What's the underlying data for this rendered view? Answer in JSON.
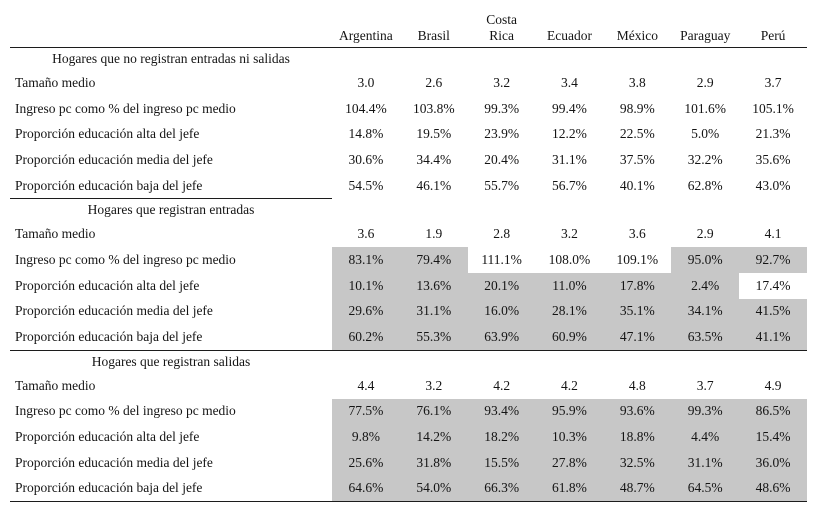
{
  "table": {
    "shade_color": "#c7c7c7",
    "columns": [
      "Argentina",
      "Brasil",
      "Costa\nRica",
      "Ecuador",
      "México",
      "Paraguay",
      "Perú"
    ],
    "sections": [
      {
        "title": "Hogares que no registran entradas ni salidas",
        "rows": [
          {
            "label": "Tamaño medio",
            "values": [
              "3.0",
              "2.6",
              "3.2",
              "3.4",
              "3.8",
              "2.9",
              "3.7"
            ],
            "shaded": []
          },
          {
            "label": "Ingreso pc como % del ingreso pc medio",
            "values": [
              "104.4%",
              "103.8%",
              "99.3%",
              "99.4%",
              "98.9%",
              "101.6%",
              "105.1%"
            ],
            "shaded": []
          },
          {
            "label": "Proporción educación alta del jefe",
            "values": [
              "14.8%",
              "19.5%",
              "23.9%",
              "12.2%",
              "22.5%",
              "5.0%",
              "21.3%"
            ],
            "shaded": []
          },
          {
            "label": "Proporción educación media del jefe",
            "values": [
              "30.6%",
              "34.4%",
              "20.4%",
              "31.1%",
              "37.5%",
              "32.2%",
              "35.6%"
            ],
            "shaded": []
          },
          {
            "label": "Proporción educación baja del jefe",
            "values": [
              "54.5%",
              "46.1%",
              "55.7%",
              "56.7%",
              "40.1%",
              "62.8%",
              "43.0%"
            ],
            "shaded": []
          }
        ]
      },
      {
        "title": "Hogares que registran entradas",
        "rows": [
          {
            "label": "Tamaño medio",
            "values": [
              "3.6",
              "1.9",
              "2.8",
              "3.2",
              "3.6",
              "2.9",
              "4.1"
            ],
            "shaded": []
          },
          {
            "label": "Ingreso pc como % del ingreso pc medio",
            "values": [
              "83.1%",
              "79.4%",
              "111.1%",
              "108.0%",
              "109.1%",
              "95.0%",
              "92.7%"
            ],
            "shaded": [
              0,
              1,
              5,
              6
            ]
          },
          {
            "label": "Proporción educación alta del jefe",
            "values": [
              "10.1%",
              "13.6%",
              "20.1%",
              "11.0%",
              "17.8%",
              "2.4%",
              "17.4%"
            ],
            "shaded": [
              0,
              1,
              2,
              3,
              4,
              5
            ]
          },
          {
            "label": "Proporción educación media del jefe",
            "values": [
              "29.6%",
              "31.1%",
              "16.0%",
              "28.1%",
              "35.1%",
              "34.1%",
              "41.5%"
            ],
            "shaded": [
              0,
              1,
              2,
              3,
              4,
              5,
              6
            ]
          },
          {
            "label": "Proporción educación baja del jefe",
            "values": [
              "60.2%",
              "55.3%",
              "63.9%",
              "60.9%",
              "47.1%",
              "63.5%",
              "41.1%"
            ],
            "shaded": [
              0,
              1,
              2,
              3,
              4,
              5,
              6
            ]
          }
        ]
      },
      {
        "title": "Hogares que registran salidas",
        "rows": [
          {
            "label": "Tamaño medio",
            "values": [
              "4.4",
              "3.2",
              "4.2",
              "4.2",
              "4.8",
              "3.7",
              "4.9"
            ],
            "shaded": []
          },
          {
            "label": "Ingreso pc como % del ingreso pc medio",
            "values": [
              "77.5%",
              "76.1%",
              "93.4%",
              "95.9%",
              "93.6%",
              "99.3%",
              "86.5%"
            ],
            "shaded": [
              0,
              1,
              2,
              3,
              4,
              5,
              6
            ]
          },
          {
            "label": "Proporción educación alta del jefe",
            "values": [
              "9.8%",
              "14.2%",
              "18.2%",
              "10.3%",
              "18.8%",
              "4.4%",
              "15.4%"
            ],
            "shaded": [
              0,
              1,
              2,
              3,
              4,
              5,
              6
            ]
          },
          {
            "label": "Proporción educación media del jefe",
            "values": [
              "25.6%",
              "31.8%",
              "15.5%",
              "27.8%",
              "32.5%",
              "31.1%",
              "36.0%"
            ],
            "shaded": [
              0,
              1,
              2,
              3,
              4,
              5,
              6
            ]
          },
          {
            "label": "Proporción educación baja del jefe",
            "values": [
              "64.6%",
              "54.0%",
              "66.3%",
              "61.8%",
              "48.7%",
              "64.5%",
              "48.6%"
            ],
            "shaded": [
              0,
              1,
              2,
              3,
              4,
              5,
              6
            ]
          }
        ]
      }
    ]
  }
}
